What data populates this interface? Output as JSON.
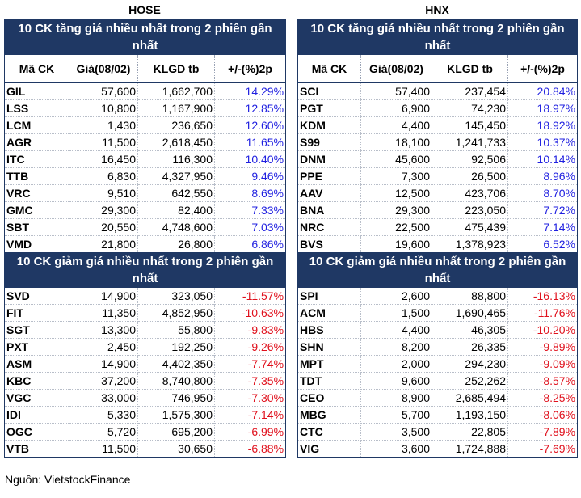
{
  "source": "Nguồn: VietstockFinance",
  "columns": [
    "Mã CK",
    "Giá(08/02)",
    "KLGD tb",
    "+/-(%)2p"
  ],
  "hose": {
    "exchange": "HOSE",
    "gainers_title": "10 CK tăng giá nhiều nhất trong 2 phiên gần nhất",
    "losers_title": "10 CK giảm giá nhiều nhất trong 2 phiên gần nhất",
    "gainers": [
      [
        "GIL",
        "57,600",
        "1,662,700",
        "14.29%"
      ],
      [
        "LSS",
        "10,800",
        "1,167,900",
        "12.85%"
      ],
      [
        "LCM",
        "1,430",
        "236,650",
        "12.60%"
      ],
      [
        "AGR",
        "11,500",
        "2,618,450",
        "11.65%"
      ],
      [
        "ITC",
        "16,450",
        "116,300",
        "10.40%"
      ],
      [
        "TTB",
        "6,830",
        "4,327,950",
        "9.46%"
      ],
      [
        "VRC",
        "9,510",
        "642,550",
        "8.69%"
      ],
      [
        "GMC",
        "29,300",
        "82,400",
        "7.33%"
      ],
      [
        "SBT",
        "20,550",
        "4,748,600",
        "7.03%"
      ],
      [
        "VMD",
        "21,800",
        "26,800",
        "6.86%"
      ]
    ],
    "losers": [
      [
        "SVD",
        "14,900",
        "323,050",
        "-11.57%"
      ],
      [
        "FIT",
        "11,350",
        "4,852,950",
        "-10.63%"
      ],
      [
        "SGT",
        "13,300",
        "55,800",
        "-9.83%"
      ],
      [
        "PXT",
        "2,450",
        "192,250",
        "-9.26%"
      ],
      [
        "ASM",
        "14,900",
        "4,402,350",
        "-7.74%"
      ],
      [
        "KBC",
        "37,200",
        "8,740,800",
        "-7.35%"
      ],
      [
        "VGC",
        "33,000",
        "746,950",
        "-7.30%"
      ],
      [
        "IDI",
        "5,330",
        "1,575,300",
        "-7.14%"
      ],
      [
        "OGC",
        "5,720",
        "695,200",
        "-6.99%"
      ],
      [
        "VTB",
        "11,500",
        "30,650",
        "-6.88%"
      ]
    ]
  },
  "hnx": {
    "exchange": "HNX",
    "gainers_title": "10 CK tăng giá nhiều nhất trong 2 phiên gần nhất",
    "losers_title": "10 CK giảm giá nhiều nhất trong 2 phiên gần nhất",
    "gainers": [
      [
        "SCI",
        "57,400",
        "237,454",
        "20.84%"
      ],
      [
        "PGT",
        "6,900",
        "74,230",
        "18.97%"
      ],
      [
        "KDM",
        "4,400",
        "145,450",
        "18.92%"
      ],
      [
        "S99",
        "18,100",
        "1,241,733",
        "10.37%"
      ],
      [
        "DNM",
        "45,600",
        "92,506",
        "10.14%"
      ],
      [
        "PPE",
        "7,300",
        "26,500",
        "8.96%"
      ],
      [
        "AAV",
        "12,500",
        "423,706",
        "8.70%"
      ],
      [
        "BNA",
        "29,300",
        "223,050",
        "7.72%"
      ],
      [
        "NRC",
        "22,500",
        "475,439",
        "7.14%"
      ],
      [
        "BVS",
        "19,600",
        "1,378,923",
        "6.52%"
      ]
    ],
    "losers": [
      [
        "SPI",
        "2,600",
        "88,800",
        "-16.13%"
      ],
      [
        "ACM",
        "1,500",
        "1,690,465",
        "-11.76%"
      ],
      [
        "HBS",
        "4,400",
        "46,305",
        "-10.20%"
      ],
      [
        "SHN",
        "8,200",
        "26,335",
        "-9.89%"
      ],
      [
        "MPT",
        "2,000",
        "294,230",
        "-9.09%"
      ],
      [
        "TDT",
        "9,600",
        "252,262",
        "-8.57%"
      ],
      [
        "CEO",
        "8,900",
        "2,685,494",
        "-8.25%"
      ],
      [
        "MBG",
        "5,700",
        "1,193,150",
        "-8.06%"
      ],
      [
        "CTC",
        "3,500",
        "22,805",
        "-7.89%"
      ],
      [
        "VIG",
        "3,600",
        "1,724,888",
        "-7.69%"
      ]
    ]
  },
  "colors": {
    "band": "#1f3864",
    "up": "#1f1fe0",
    "down": "#e0101c"
  }
}
